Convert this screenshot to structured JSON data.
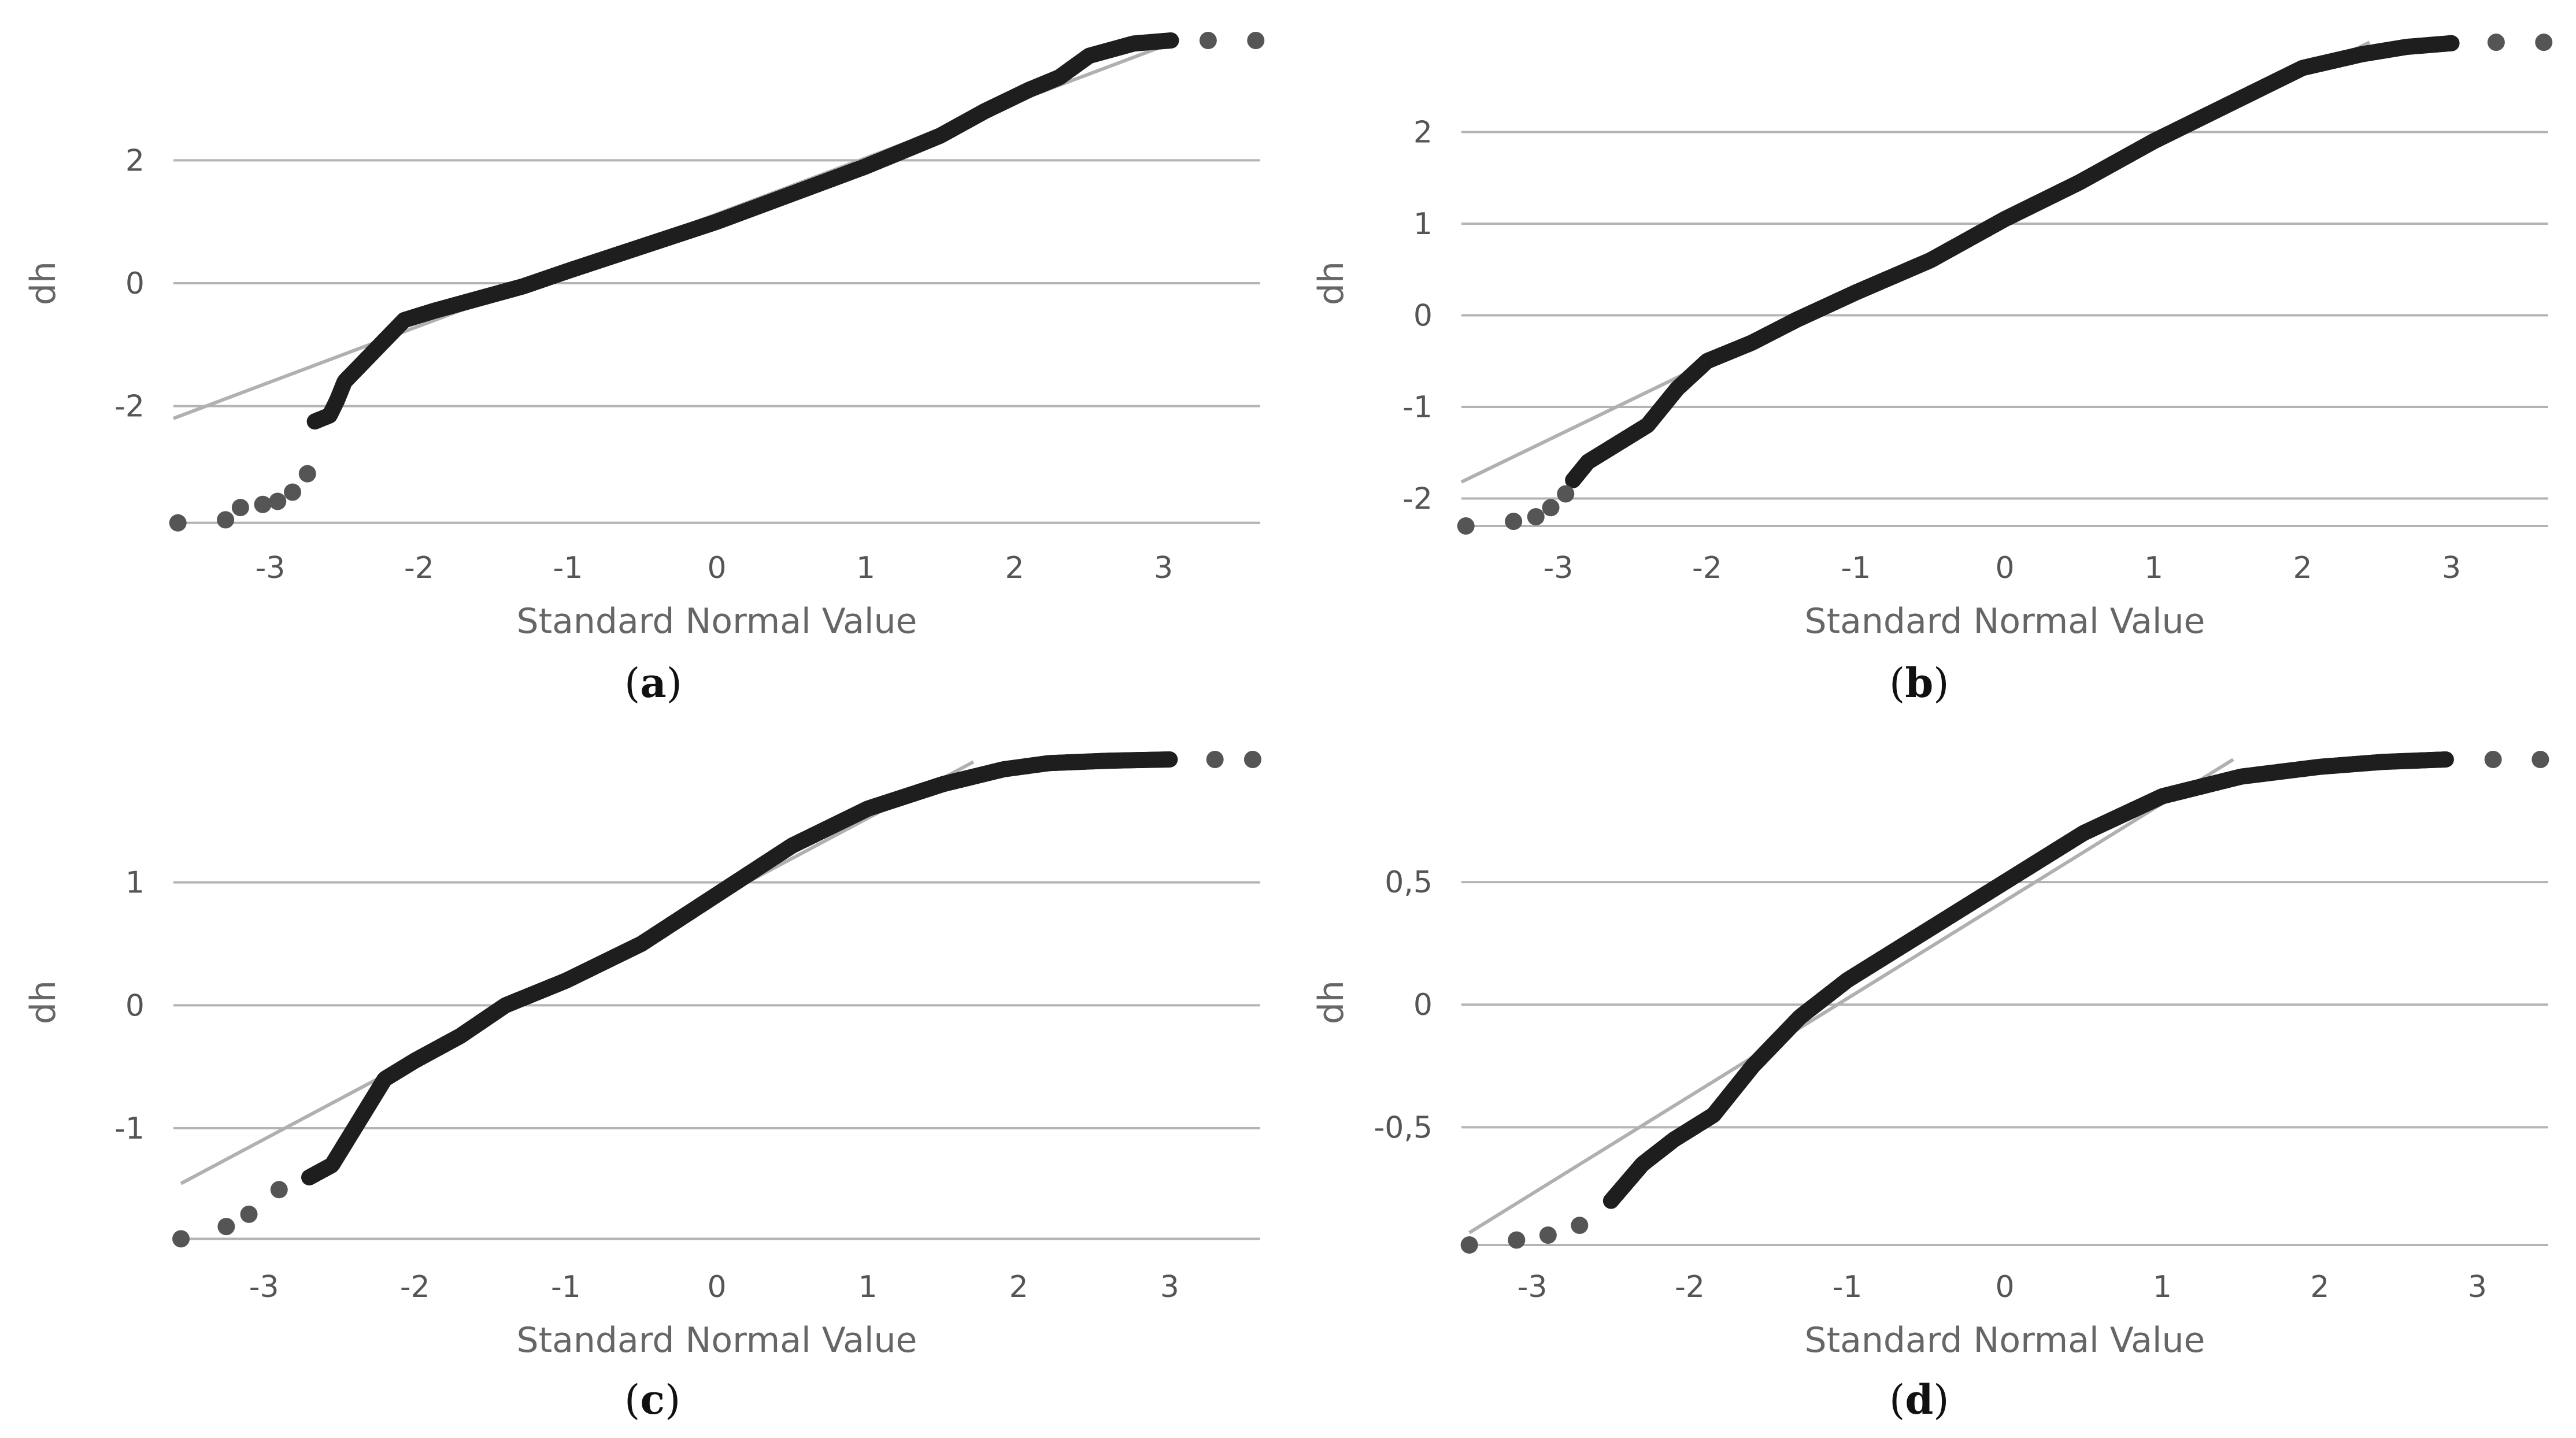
{
  "chart_data": [
    {
      "type": "scatter",
      "panel": "a",
      "caption_letter": "a",
      "xlabel": "Standard Normal Value",
      "ylabel": "dh",
      "xlim": [
        -3.65,
        3.65
      ],
      "ylim": [
        -3.95,
        3.95
      ],
      "x_ticks": [
        -3,
        -2,
        -1,
        0,
        1,
        2,
        3
      ],
      "y_ticks": [
        -2,
        0,
        2
      ],
      "grid_y": [
        -3.9,
        -2,
        0,
        2
      ],
      "reference_line": {
        "x": [
          -3.65,
          3.1
        ],
        "y": [
          -2.2,
          3.95
        ]
      },
      "series": [
        {
          "name": "observed",
          "x": [
            -3.62,
            -3.3,
            -3.2,
            -3.05,
            -2.95,
            -2.85,
            -2.75,
            -2.7,
            -2.6,
            -2.55,
            -2.5,
            -2.3,
            -2.1,
            -1.9,
            -1.6,
            -1.3,
            -1.0,
            -0.5,
            0.0,
            0.5,
            1.0,
            1.5,
            1.8,
            2.1,
            2.3,
            2.5,
            2.8,
            3.05,
            3.3,
            3.62
          ],
          "y": [
            -3.9,
            -3.85,
            -3.65,
            -3.6,
            -3.55,
            -3.4,
            -3.1,
            -2.25,
            -2.15,
            -1.9,
            -1.6,
            -1.1,
            -0.6,
            -0.45,
            -0.25,
            -0.05,
            0.2,
            0.6,
            1.0,
            1.45,
            1.9,
            2.4,
            2.8,
            3.15,
            3.35,
            3.7,
            3.9,
            3.95,
            3.95,
            3.95
          ],
          "sparse_x": [
            -3.62,
            -3.3,
            -3.2,
            -3.05,
            -2.95,
            -2.85,
            -2.75,
            3.3,
            3.62
          ]
        }
      ]
    },
    {
      "type": "scatter",
      "panel": "b",
      "caption_letter": "b",
      "xlabel": "Standard Normal Value",
      "ylabel": "dh",
      "xlim": [
        -3.65,
        3.65
      ],
      "ylim": [
        -2.3,
        3.0
      ],
      "x_ticks": [
        -3,
        -2,
        -1,
        0,
        1,
        2,
        3
      ],
      "y_ticks": [
        -2,
        -1,
        0,
        1,
        2
      ],
      "grid_y": [
        -2.3,
        -2,
        -1,
        0,
        1,
        2
      ],
      "reference_line": {
        "x": [
          -3.65,
          2.45
        ],
        "y": [
          -1.82,
          2.98
        ]
      },
      "series": [
        {
          "name": "observed",
          "x": [
            -3.62,
            -3.3,
            -3.15,
            -3.05,
            -2.95,
            -2.9,
            -2.8,
            -2.6,
            -2.4,
            -2.2,
            -2.0,
            -1.7,
            -1.4,
            -1.0,
            -0.5,
            0.0,
            0.5,
            1.0,
            1.5,
            2.0,
            2.4,
            2.7,
            3.0,
            3.3,
            3.62
          ],
          "y": [
            -2.3,
            -2.25,
            -2.2,
            -2.1,
            -1.95,
            -1.8,
            -1.6,
            -1.4,
            -1.2,
            -0.8,
            -0.5,
            -0.3,
            -0.05,
            0.25,
            0.6,
            1.05,
            1.45,
            1.9,
            2.3,
            2.7,
            2.85,
            2.93,
            2.97,
            2.98,
            2.98
          ],
          "sparse_x": [
            -3.62,
            -3.3,
            -3.15,
            -3.05,
            -2.95,
            3.3,
            3.62
          ]
        }
      ]
    },
    {
      "type": "scatter",
      "panel": "c",
      "caption_letter": "c",
      "xlabel": "Standard Normal Value",
      "ylabel": "dh",
      "xlim": [
        -3.6,
        3.6
      ],
      "ylim": [
        -1.95,
        2.0
      ],
      "x_ticks": [
        -3,
        -2,
        -1,
        0,
        1,
        2,
        3
      ],
      "y_ticks": [
        -1,
        0,
        1
      ],
      "grid_y": [
        -1.9,
        -1,
        0,
        1
      ],
      "reference_line": {
        "x": [
          -3.55,
          1.7
        ],
        "y": [
          -1.45,
          1.98
        ]
      },
      "series": [
        {
          "name": "observed",
          "x": [
            -3.55,
            -3.25,
            -3.1,
            -2.9,
            -2.7,
            -2.55,
            -2.4,
            -2.2,
            -2.0,
            -1.7,
            -1.4,
            -1.0,
            -0.5,
            0.0,
            0.5,
            1.0,
            1.5,
            1.9,
            2.2,
            2.6,
            3.0,
            3.3,
            3.55
          ],
          "y": [
            -1.9,
            -1.8,
            -1.7,
            -1.5,
            -1.4,
            -1.3,
            -1.0,
            -0.6,
            -0.45,
            -0.25,
            0.0,
            0.2,
            0.5,
            0.9,
            1.3,
            1.6,
            1.8,
            1.92,
            1.97,
            1.99,
            2.0,
            2.0,
            2.0
          ],
          "sparse_x": [
            -3.55,
            -3.25,
            -3.1,
            -2.9,
            3.3,
            3.55
          ]
        }
      ]
    },
    {
      "type": "scatter",
      "panel": "d",
      "caption_letter": "d",
      "xlabel": "Standard Normal Value",
      "ylabel": "dh",
      "x_ticks": [
        -3,
        -2,
        -1,
        0,
        1,
        2,
        3
      ],
      "y_ticks": [
        -0.5,
        0,
        0.5
      ],
      "y_tick_labels": [
        "-0,5",
        "0",
        "0,5"
      ],
      "xlim": [
        -3.45,
        3.45
      ],
      "ylim": [
        -0.98,
        1.0
      ],
      "grid_y": [
        -0.98,
        -0.5,
        0,
        0.5
      ],
      "reference_line": {
        "x": [
          -3.4,
          1.45
        ],
        "y": [
          -0.93,
          1.0
        ]
      },
      "series": [
        {
          "name": "observed",
          "x": [
            -3.4,
            -3.1,
            -2.9,
            -2.7,
            -2.5,
            -2.3,
            -2.1,
            -1.85,
            -1.6,
            -1.3,
            -1.0,
            -0.5,
            0.0,
            0.5,
            1.0,
            1.5,
            2.0,
            2.4,
            2.8,
            3.1,
            3.4
          ],
          "y": [
            -0.98,
            -0.96,
            -0.94,
            -0.9,
            -0.8,
            -0.65,
            -0.55,
            -0.45,
            -0.25,
            -0.05,
            0.1,
            0.3,
            0.5,
            0.7,
            0.85,
            0.93,
            0.97,
            0.99,
            1.0,
            1.0,
            1.0
          ],
          "sparse_x": [
            -3.4,
            -3.1,
            -2.9,
            -2.7,
            3.1,
            3.4
          ]
        }
      ]
    }
  ]
}
